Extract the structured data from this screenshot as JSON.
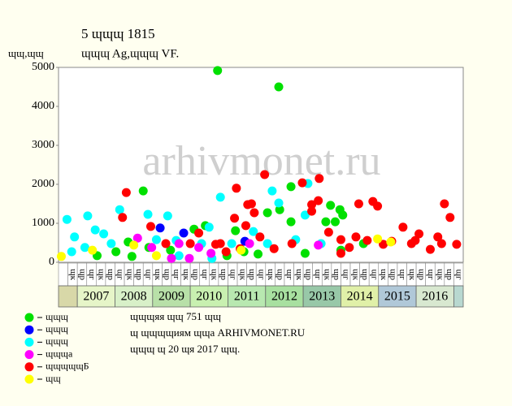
{
  "chart_data": {
    "type": "scatter",
    "title": "5 ɰɰɰ 1815",
    "subtitle": "ɰɰɰ Ag,ɰɰɰ VF.",
    "y_label": "ɰɰ,ɰɰ",
    "watermark": "arhivmonet.ru",
    "ylim": [
      0,
      5000
    ],
    "yticks": [
      0,
      1000,
      2000,
      3000,
      4000,
      5000
    ],
    "xlim": [
      0,
      43
    ],
    "categories": [
      null,
      "ɰк",
      "ɰр",
      "ɰг",
      "ɰк",
      "ɰр",
      "ɰг",
      "ɰк",
      "ɰр",
      "ɰг",
      "ɰк",
      "ɰр",
      "ɰг",
      "ɰк",
      "ɰр",
      "ɰг",
      "ɰк",
      "ɰр",
      "ɰг",
      "ɰк",
      "ɰр",
      "ɰг",
      "ɰк",
      "ɰр",
      "ɰг",
      "ɰк",
      "ɰр",
      "ɰг",
      "ɰк",
      "ɰр",
      "ɰг",
      "ɰк",
      "ɰр",
      "ɰг",
      "ɰк",
      "ɰр",
      "ɰг",
      "ɰк",
      "ɰр",
      "ɰг",
      "ɰк",
      "ɰр",
      "ɰг"
    ],
    "groups": [
      {
        "label": null,
        "count": 2,
        "color": "#d8d8a8"
      },
      {
        "label": "2007",
        "count": 4,
        "color": "#e6f5c8"
      },
      {
        "label": "2008",
        "count": 4,
        "color": "#d8f0c8"
      },
      {
        "label": "2009",
        "count": 4,
        "color": "#b8e0a8"
      },
      {
        "label": "2010",
        "count": 4,
        "color": "#c8f0b0"
      },
      {
        "label": "2011",
        "count": 4,
        "color": "#b8e8b0"
      },
      {
        "label": "2012",
        "count": 4,
        "color": "#a8e0a0"
      },
      {
        "label": "2013",
        "count": 4,
        "color": "#98c8a8"
      },
      {
        "label": "2014",
        "count": 4,
        "color": "#e0f0a8"
      },
      {
        "label": "2015",
        "count": 4,
        "color": "#b0c8d8"
      },
      {
        "label": "2016",
        "count": 4,
        "color": "#d8e8d0"
      },
      {
        "label": null,
        "count": 1,
        "color": "#b8d8d0"
      }
    ],
    "series": [
      {
        "name": "ɰɰɰ",
        "color": "#00e000",
        "x": [
          16.9,
          23.4,
          9,
          24.7,
          23.5,
          22.2,
          28.9,
          29.9,
          30.2,
          28.4,
          29.4,
          14.4,
          15.6,
          18.8,
          24.7,
          4.1,
          7.8,
          6.1,
          7.4,
          9.6,
          11.9,
          17.9,
          19.7,
          21.2,
          26.2,
          30,
          32.4
        ],
        "values": [
          4920,
          4500,
          1830,
          1940,
          1350,
          1270,
          1460,
          1350,
          1210,
          1040,
          1040,
          850,
          940,
          810,
          1040,
          170,
          150,
          270,
          520,
          380,
          310,
          170,
          270,
          210,
          230,
          310,
          480
        ]
      },
      {
        "name": "ɰɰɰ",
        "color": "#0000ff",
        "x": [
          10.8,
          13.3,
          19.8
        ],
        "values": [
          880,
          750,
          540
        ]
      },
      {
        "name": "ɰɰɰ",
        "color": "#00ffff",
        "x": [
          0.9,
          1.7,
          3.1,
          3.9,
          6.5,
          9.5,
          11.6,
          17.2,
          23.4,
          22.7,
          26.5,
          26.2,
          16,
          20.7,
          1.4,
          2.8,
          4.8,
          5.6,
          10.4,
          12.5,
          15.2,
          18.4,
          22.2,
          25.2,
          27.9,
          12.8,
          16.3
        ],
        "values": [
          1100,
          650,
          1190,
          830,
          1350,
          1230,
          1190,
          1670,
          1520,
          1830,
          2020,
          1210,
          900,
          790,
          270,
          380,
          730,
          480,
          580,
          560,
          480,
          480,
          480,
          580,
          480,
          170,
          100
        ]
      },
      {
        "name": "ɰɰɰа",
        "color": "#ff00ff",
        "x": [
          8.4,
          9.9,
          12,
          13.9,
          16.2,
          14.9,
          20.3,
          27.6,
          12.8
        ],
        "values": [
          620,
          380,
          100,
          100,
          230,
          380,
          480,
          440,
          480
        ]
      },
      {
        "name": "ɰɰɰɰɰБ",
        "color": "#ff0000",
        "x": [
          7.2,
          6.8,
          9.8,
          11.4,
          14,
          14.9,
          16.7,
          17.2,
          18.9,
          18.7,
          20.1,
          20.5,
          20.8,
          21.9,
          19.9,
          21.4,
          25.9,
          26.9,
          27.6,
          27.7,
          26.9,
          28.7,
          30,
          31.6,
          31.9,
          32.8,
          33.4,
          33.9,
          34.5,
          35.4,
          36.6,
          37.5,
          38.3,
          39.5,
          40.3,
          40.7,
          41,
          41.6,
          42.3,
          24.8,
          22.9,
          19.3,
          17.8,
          30,
          30.9,
          37.9
        ],
        "values": [
          1790,
          1150,
          920,
          480,
          480,
          750,
          460,
          480,
          1900,
          1130,
          1480,
          1500,
          1270,
          2250,
          940,
          650,
          2040,
          1480,
          1580,
          2150,
          1310,
          770,
          580,
          650,
          1500,
          560,
          1560,
          1440,
          460,
          540,
          900,
          480,
          730,
          330,
          650,
          480,
          1500,
          1150,
          460,
          480,
          350,
          350,
          270,
          230,
          380,
          560
        ]
      },
      {
        "name": "ɰɰ",
        "color": "#ffff00",
        "x": [
          0.3,
          3.6,
          8,
          10.4,
          19.4,
          33.9,
          35.3
        ],
        "values": [
          150,
          310,
          440,
          170,
          310,
          600,
          520
        ]
      }
    ],
    "footer": [
      "ɰɰɰяя ɰɰ 751 ɰɰ",
      "ɰ ɰɰɰɰиям ɰɰа ARHIVMONET.RU",
      "ɰɰɰ ɰ 20 ɰя 2017 ɰɰ."
    ]
  }
}
